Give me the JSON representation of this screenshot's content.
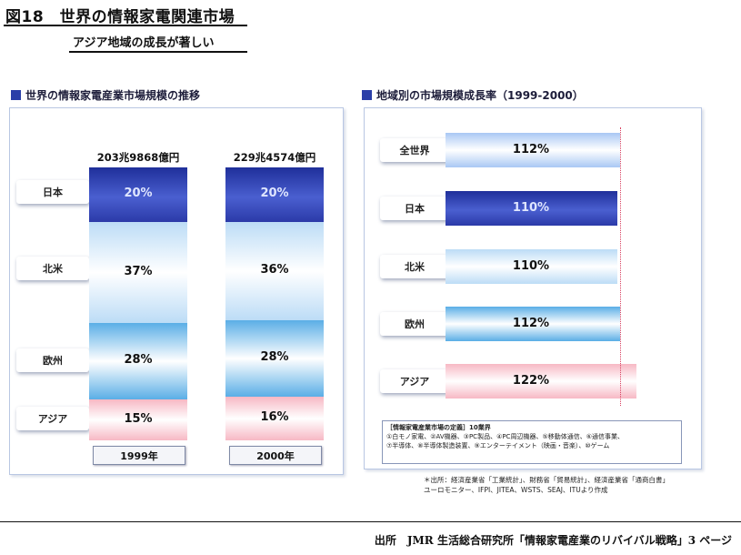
{
  "figure": {
    "title": "図18　世界の情報家電関連市場",
    "subtitle": "アジア地域の成長が著しい"
  },
  "colors": {
    "japan": "#2e3fb0",
    "northamerica": "#bcdcf6",
    "europe": "#5aaee6",
    "asia": "#f7b8c4",
    "dotted": "#d94060"
  },
  "chart_data": [
    {
      "type": "bar",
      "title": "世界の情報家電産業市場規模の推移",
      "stacked": true,
      "percent": true,
      "categories": [
        "1999年",
        "2000年"
      ],
      "totals": [
        "203兆9868億円",
        "229兆4574億円"
      ],
      "series": [
        {
          "name": "日本",
          "values": [
            20,
            20
          ],
          "labels": [
            "20%",
            "20%"
          ]
        },
        {
          "name": "北米",
          "values": [
            37,
            36
          ],
          "labels": [
            "37%",
            "36%"
          ]
        },
        {
          "name": "欧州",
          "values": [
            28,
            28
          ],
          "labels": [
            "28%",
            "28%"
          ]
        },
        {
          "name": "アジア",
          "values": [
            15,
            16
          ],
          "labels": [
            "15%",
            "16%"
          ]
        }
      ]
    },
    {
      "type": "bar",
      "orientation": "horizontal",
      "title": "地域別の市場規模成長率（1999-2000）",
      "categories": [
        "全世界",
        "日本",
        "北米",
        "欧州",
        "アジア"
      ],
      "values": [
        112,
        110,
        110,
        112,
        122
      ],
      "labels": [
        "112%",
        "110%",
        "110%",
        "112%",
        "122%"
      ],
      "reference_line": 112
    }
  ],
  "definition_box": {
    "title": "［情報家電産業市場の定義］10業界",
    "line1": "①白モノ家電、②AV機器、③PC製品、④PC周辺機器、⑤移動体通信、⑥通信事業、",
    "line2": "⑦半導体、⑧半導体製造装置、⑨エンターテイメント（映画・音楽）、⑩ゲーム"
  },
  "source_small": {
    "line1": "＊出所：経済産業省「工業統計」、財務省「貿易統計」、経済産業省「通商白書」",
    "line2": "ユーロモニター、IFPI、JITEA、WSTS、SEAJ、ITUより作成"
  },
  "source_main": "出所　JMR 生活総合研究所「情報家電産業のリバイバル戦略」3 ページ"
}
